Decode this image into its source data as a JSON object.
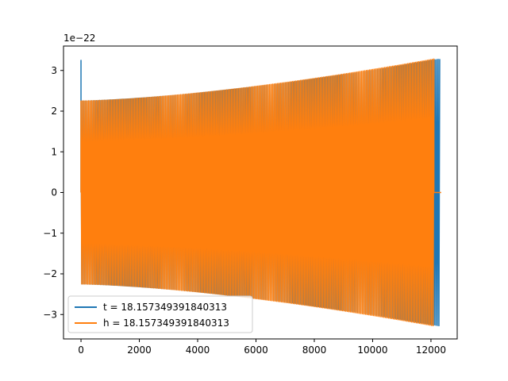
{
  "chart_data": {
    "type": "line",
    "title": "",
    "xlabel": "",
    "ylabel": "",
    "y_offset_text": "1e−22",
    "xlim": [
      -600,
      12900
    ],
    "ylim": [
      -3.6,
      3.6
    ],
    "xticks": [
      0,
      2000,
      4000,
      6000,
      8000,
      10000,
      12000
    ],
    "xtick_labels": [
      "0",
      "2000",
      "4000",
      "6000",
      "8000",
      "10000",
      "12000"
    ],
    "yticks": [
      -3,
      -2,
      -1,
      0,
      1,
      2,
      3
    ],
    "ytick_labels": [
      "−3",
      "−2",
      "−1",
      "0",
      "1",
      "2",
      "3"
    ],
    "grid": false,
    "legend_position": "lower-left",
    "series": [
      {
        "name": "t = 18.157349391840313",
        "color": "#1f77b4",
        "x_start": 0,
        "x_end": 12300,
        "initial_spike": 3.25,
        "amplitude_start": 2.25,
        "amplitude_end": 3.28,
        "cycles": 230
      },
      {
        "name": "h = 18.157349391840313",
        "color": "#ff7f0e",
        "x_start": 0,
        "x_end": 12100,
        "initial_spike": 1.65,
        "amplitude_start": 2.25,
        "amplitude_end": 3.28,
        "cycles": 230,
        "tail_x_end": 12350,
        "tail_value": 0
      }
    ]
  }
}
